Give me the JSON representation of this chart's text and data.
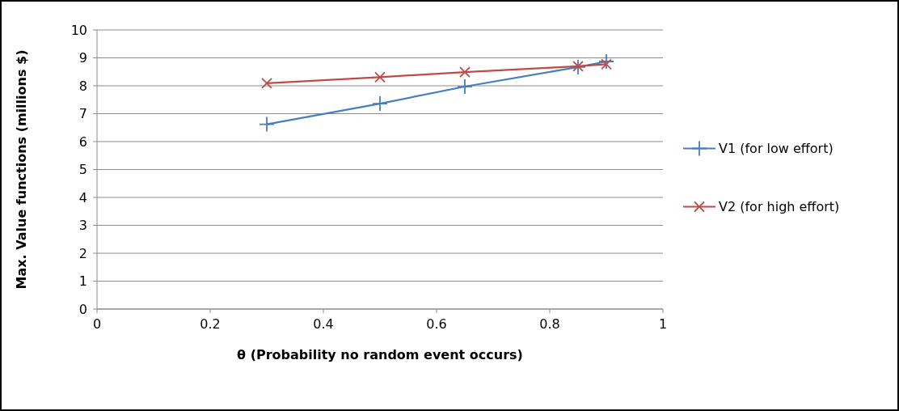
{
  "chart_data": {
    "type": "line",
    "xlabel": "θ (Probability no random event occurs)",
    "ylabel": "Max. Value functions (millions $)",
    "xlim": [
      0,
      1
    ],
    "xticks": [
      0,
      0.2,
      0.4,
      0.6,
      0.8,
      1
    ],
    "ylim": [
      0,
      10
    ],
    "yticks": [
      0,
      1,
      2,
      3,
      4,
      5,
      6,
      7,
      8,
      9,
      10
    ],
    "grid": "y",
    "legend": "right",
    "line_style": "solid",
    "x": [
      0.3,
      0.5,
      0.65,
      0.85,
      0.9
    ],
    "series": [
      {
        "name": "V1 (for low effort)",
        "color": "#4a7ebb",
        "marker": "plus",
        "values": [
          6.62,
          7.36,
          7.97,
          8.67,
          8.87
        ]
      },
      {
        "name": "V2 (for high effort)",
        "color": "#be4b48",
        "marker": "cross",
        "values": [
          8.09,
          8.31,
          8.49,
          8.7,
          8.77
        ]
      }
    ]
  }
}
